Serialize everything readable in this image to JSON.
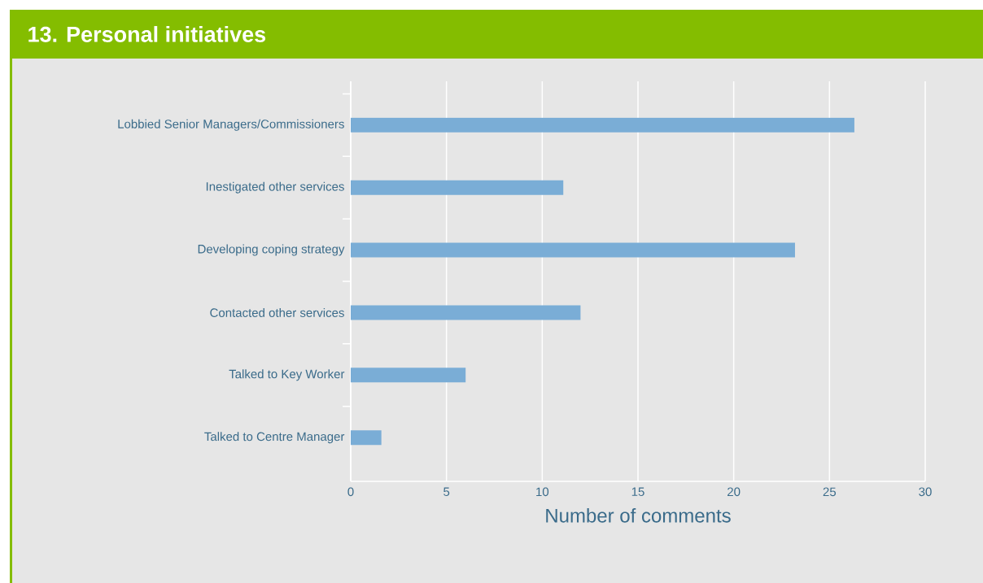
{
  "chart_data": {
    "type": "bar",
    "orientation": "horizontal",
    "title": "13. Personal initiatives",
    "xlabel": "Number of comments",
    "categories": [
      "Lobbied Senior Managers/Commissioners",
      "Inestigated other services",
      "Developing coping strategy",
      "Contacted other services",
      "Talked to Key Worker",
      "Talked to Centre Manager"
    ],
    "values": [
      26.3,
      11.1,
      23.2,
      12.0,
      6.0,
      1.6
    ],
    "color": "#7aadd6",
    "xlim": [
      0,
      30
    ],
    "xticks": [
      0,
      5,
      10,
      15,
      20,
      25,
      30
    ],
    "grid": "x"
  }
}
